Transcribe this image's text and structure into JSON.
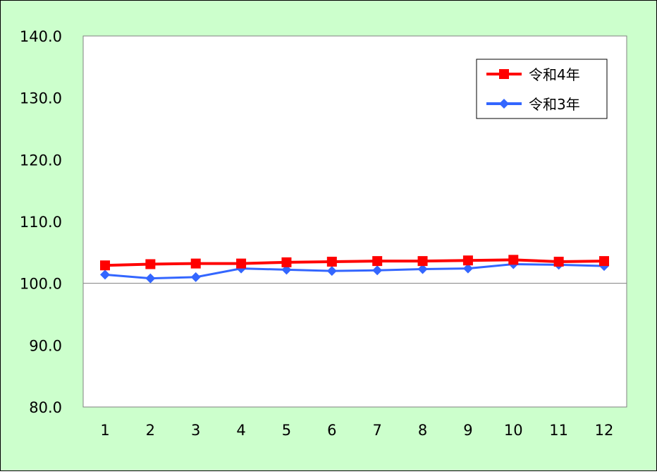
{
  "chart_data": {
    "type": "line",
    "categories": [
      "1",
      "2",
      "3",
      "4",
      "5",
      "6",
      "7",
      "8",
      "9",
      "10",
      "11",
      "12"
    ],
    "ylim": [
      80,
      140
    ],
    "yticks": [
      "80.0",
      "90.0",
      "100.0",
      "110.0",
      "120.0",
      "130.0",
      "140.0"
    ],
    "reference_line": 100,
    "grid": false,
    "legend_position": "top-right",
    "series": [
      {
        "name": "令和4年",
        "color": "#FF0000",
        "marker": "square",
        "values": [
          102.9,
          103.1,
          103.2,
          103.2,
          103.4,
          103.5,
          103.6,
          103.6,
          103.7,
          103.8,
          103.5,
          103.6
        ]
      },
      {
        "name": "令和3年",
        "color": "#3366FF",
        "marker": "diamond",
        "values": [
          101.4,
          100.8,
          101.0,
          102.4,
          102.2,
          102.0,
          102.1,
          102.3,
          102.4,
          103.1,
          103.0,
          102.8
        ]
      }
    ],
    "colors": {
      "background": "#CCFFCC",
      "plot": "#FFFFFF",
      "border": "#000000",
      "reference": "#808080"
    }
  }
}
